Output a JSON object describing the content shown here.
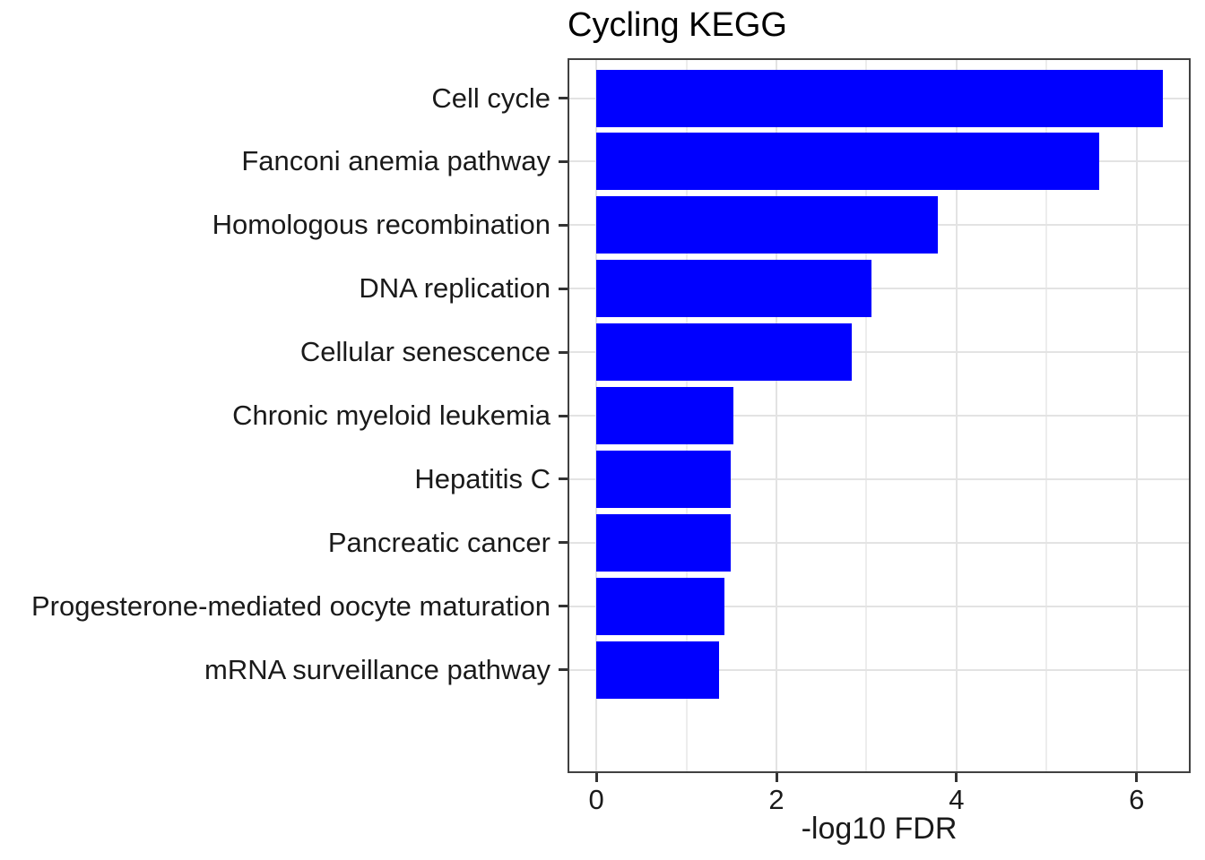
{
  "chart_data": {
    "type": "bar",
    "orientation": "horizontal",
    "title": "Cycling KEGG",
    "xlabel": "-log10 FDR",
    "ylabel": "",
    "categories": [
      "Cell cycle",
      "Fanconi anemia pathway",
      "Homologous recombination",
      "DNA replication",
      "Cellular senescence",
      "Chronic myeloid leukemia",
      "Hepatitis C",
      "Pancreatic cancer",
      "Progesterone-mediated oocyte maturation",
      "mRNA surveillance pathway"
    ],
    "values": [
      6.29,
      5.59,
      3.79,
      3.06,
      2.84,
      1.52,
      1.49,
      1.49,
      1.42,
      1.36
    ],
    "xlim": [
      -0.3,
      6.58
    ],
    "x_major_ticks": [
      0,
      2,
      4,
      6
    ],
    "x_tick_labels": [
      "0",
      "2",
      "4",
      "6"
    ],
    "x_minor_ticks": [
      1,
      3,
      5
    ],
    "grid": "major-and-minor-x, major-y",
    "legend": false,
    "bar_color": "#0000FF",
    "panel_border_color": "#404040",
    "grid_major_color": "#E3E3E3",
    "grid_minor_color": "#EDEDED",
    "tick_color": "#333333",
    "text_color": "#1a1a1a",
    "title_color": "#000000"
  }
}
